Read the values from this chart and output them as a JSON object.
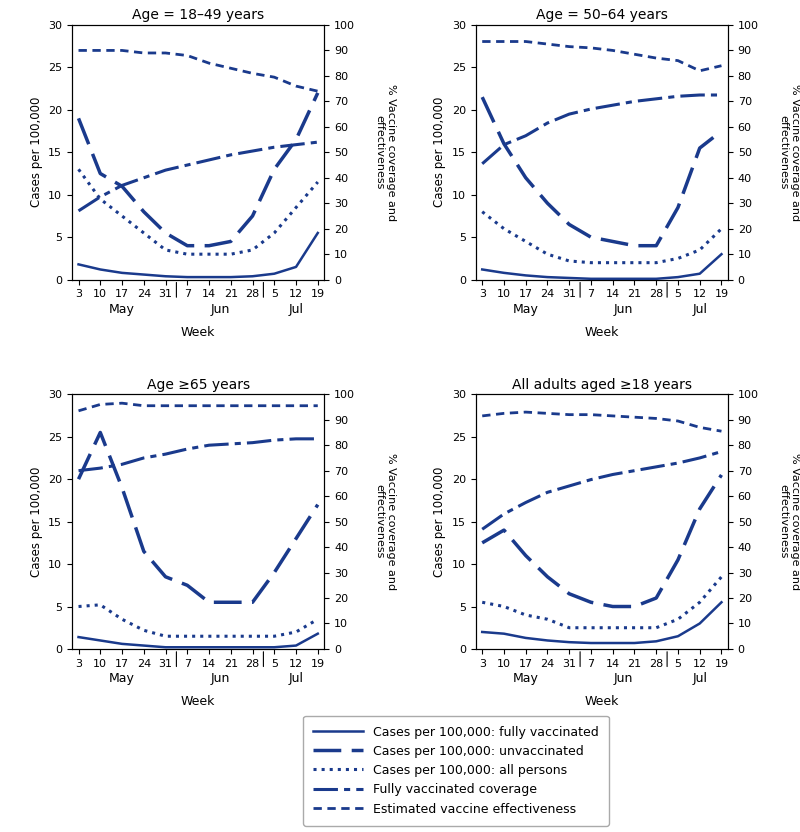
{
  "color": "#1a3a8c",
  "x_labels": [
    "3",
    "10",
    "17",
    "24",
    "31",
    "7",
    "14",
    "21",
    "28",
    "5",
    "12",
    "19"
  ],
  "panels": [
    {
      "title": "Age = 18–49 years",
      "fully_vacc": [
        1.8,
        1.2,
        0.8,
        0.6,
        0.4,
        0.3,
        0.3,
        0.3,
        0.4,
        0.7,
        1.5,
        5.5
      ],
      "unvacc": [
        19.0,
        12.5,
        11.0,
        8.0,
        5.5,
        4.0,
        4.0,
        4.5,
        7.5,
        13.0,
        16.5,
        22.0
      ],
      "all_persons": [
        13.0,
        9.5,
        7.5,
        5.5,
        3.5,
        3.0,
        3.0,
        3.0,
        3.5,
        5.5,
        8.5,
        11.5
      ],
      "vacc_cov_pct": [
        27.0,
        32.5,
        37.0,
        40.0,
        43.0,
        45.0,
        47.0,
        49.0,
        50.5,
        52.0,
        53.0,
        54.0
      ],
      "vacc_eff_pct": [
        90.0,
        90.0,
        90.0,
        89.0,
        89.0,
        88.0,
        85.0,
        83.0,
        81.0,
        79.5,
        76.0,
        74.0
      ]
    },
    {
      "title": "Age = 50–64 years",
      "fully_vacc": [
        1.2,
        0.8,
        0.5,
        0.3,
        0.2,
        0.1,
        0.1,
        0.1,
        0.1,
        0.3,
        0.7,
        3.0
      ],
      "unvacc": [
        21.5,
        16.0,
        12.0,
        9.0,
        6.5,
        5.0,
        4.5,
        4.0,
        4.0,
        8.5,
        15.5,
        17.5
      ],
      "all_persons": [
        8.0,
        6.0,
        4.5,
        3.0,
        2.2,
        2.0,
        2.0,
        2.0,
        2.0,
        2.5,
        3.5,
        6.0
      ],
      "vacc_cov_pct": [
        45.5,
        53.0,
        56.5,
        61.5,
        65.0,
        67.0,
        68.5,
        70.0,
        71.0,
        72.0,
        72.5,
        72.5
      ],
      "vacc_eff_pct": [
        93.5,
        93.5,
        93.5,
        92.5,
        91.5,
        91.0,
        90.0,
        88.5,
        87.0,
        86.0,
        82.0,
        84.0
      ]
    },
    {
      "title": "Age ≥65 years",
      "fully_vacc": [
        1.4,
        1.0,
        0.6,
        0.4,
        0.2,
        0.2,
        0.2,
        0.2,
        0.2,
        0.2,
        0.4,
        1.8
      ],
      "unvacc": [
        20.0,
        25.5,
        19.0,
        11.5,
        8.5,
        7.5,
        5.5,
        5.5,
        5.5,
        9.0,
        13.0,
        17.0
      ],
      "all_persons": [
        5.0,
        5.2,
        3.5,
        2.2,
        1.5,
        1.5,
        1.5,
        1.5,
        1.5,
        1.5,
        2.0,
        3.5
      ],
      "vacc_cov_pct": [
        70.0,
        71.0,
        72.5,
        75.0,
        76.5,
        78.5,
        80.0,
        80.5,
        81.0,
        82.0,
        82.5,
        82.5
      ],
      "vacc_eff_pct": [
        93.5,
        96.0,
        96.5,
        95.5,
        95.5,
        95.5,
        95.5,
        95.5,
        95.5,
        95.5,
        95.5,
        95.5
      ]
    },
    {
      "title": "All adults aged ≥18 years",
      "fully_vacc": [
        2.0,
        1.8,
        1.3,
        1.0,
        0.8,
        0.7,
        0.7,
        0.7,
        0.9,
        1.5,
        3.0,
        5.5
      ],
      "unvacc": [
        12.5,
        14.0,
        11.0,
        8.5,
        6.5,
        5.5,
        5.0,
        5.0,
        6.0,
        10.5,
        16.5,
        20.5
      ],
      "all_persons": [
        5.5,
        5.0,
        4.0,
        3.5,
        2.5,
        2.5,
        2.5,
        2.5,
        2.5,
        3.5,
        5.5,
        8.5
      ],
      "vacc_cov_pct": [
        47.0,
        53.0,
        57.5,
        61.5,
        64.0,
        66.5,
        68.5,
        70.0,
        71.5,
        73.0,
        75.0,
        77.5
      ],
      "vacc_eff_pct": [
        91.5,
        92.5,
        93.0,
        92.5,
        92.0,
        92.0,
        91.5,
        91.0,
        90.5,
        89.5,
        87.0,
        85.5
      ]
    }
  ],
  "legend_labels": [
    "Cases per 100,000: fully vaccinated",
    "Cases per 100,000: unvaccinated",
    "Cases per 100,000: all persons",
    "Fully vaccinated coverage",
    "Estimated vaccine effectiveness"
  ]
}
